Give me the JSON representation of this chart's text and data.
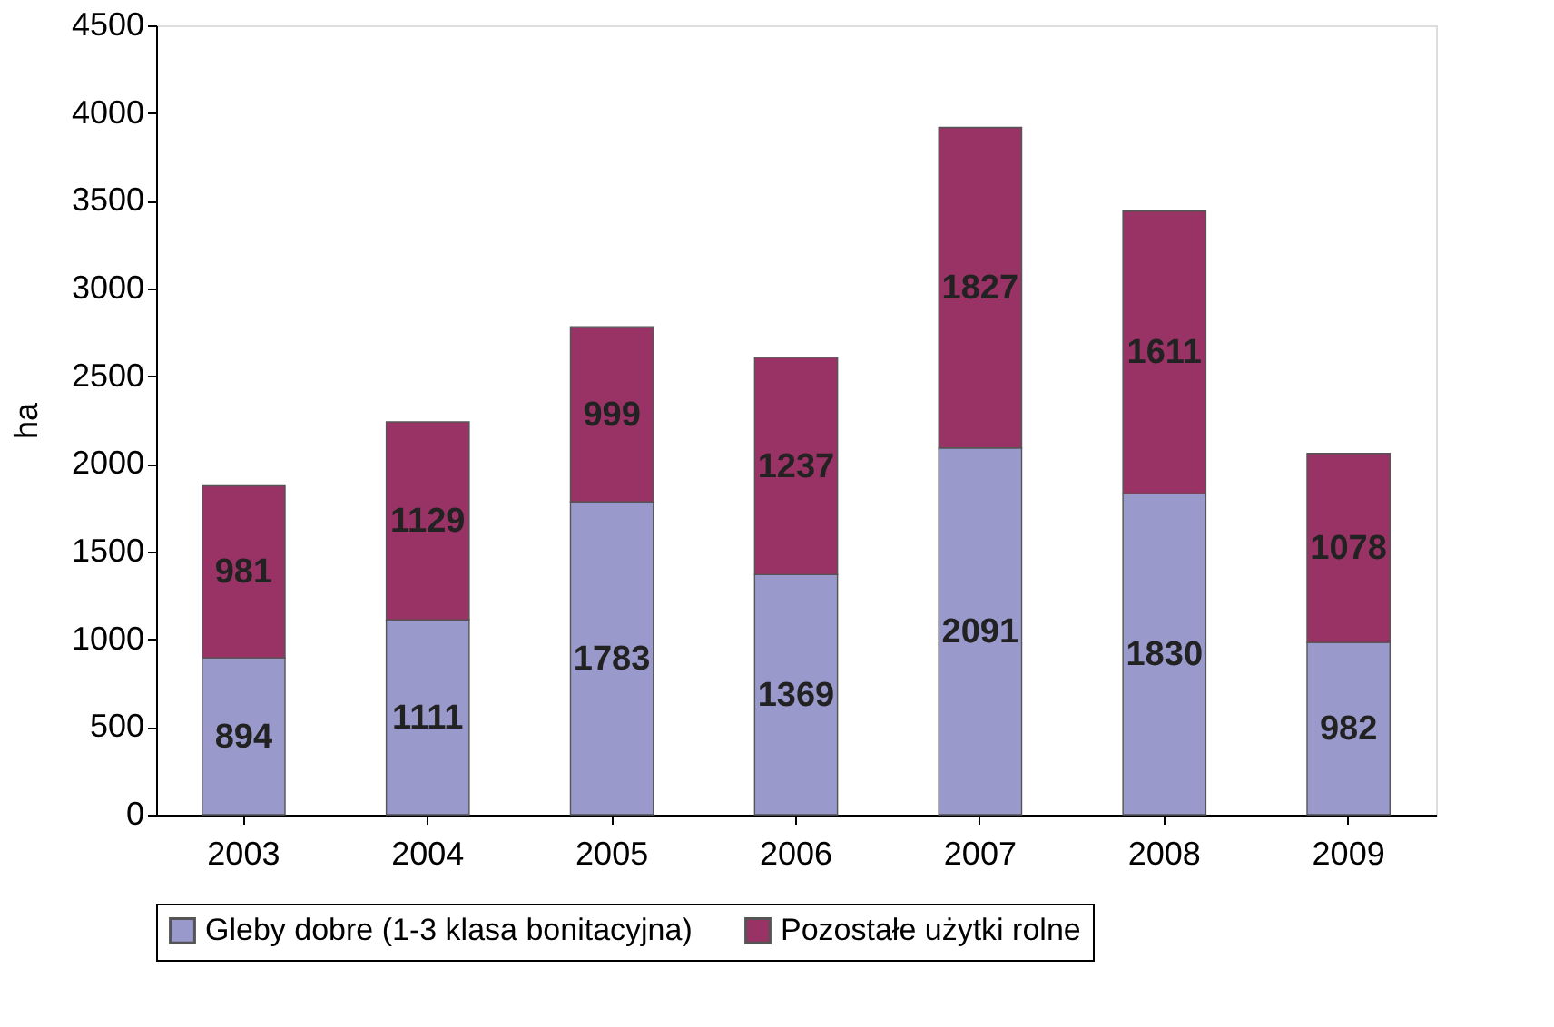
{
  "chart_data": {
    "type": "bar",
    "stacked": true,
    "ylabel": "ha",
    "categories": [
      "2003",
      "2004",
      "2005",
      "2006",
      "2007",
      "2008",
      "2009"
    ],
    "series": [
      {
        "name": "Gleby dobre (1-3 klasa bonitacyjna)",
        "color": "#9999cc",
        "values": [
          894,
          1111,
          1783,
          1369,
          2091,
          1830,
          982
        ]
      },
      {
        "name": "Pozostałe użytki rolne",
        "color": "#993366",
        "values": [
          981,
          1129,
          999,
          1237,
          1827,
          1611,
          1078
        ]
      }
    ],
    "ylim": [
      0,
      4500
    ],
    "yticks": [
      0,
      500,
      1000,
      1500,
      2000,
      2500,
      3000,
      3500,
      4000,
      4500
    ],
    "data_labels": true,
    "grid": false,
    "legend": "bottom"
  }
}
